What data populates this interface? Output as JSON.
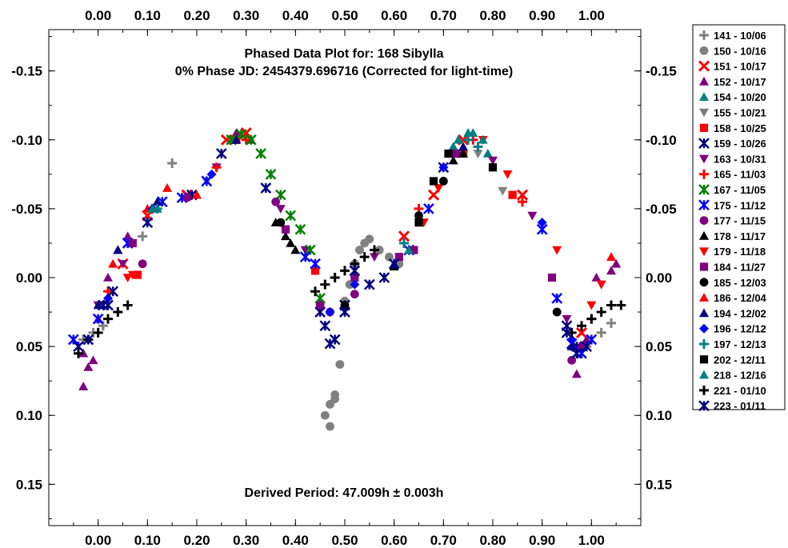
{
  "chart_data": {
    "type": "scatter",
    "title": "Phased Data Plot for: 168 Sibylla",
    "subtitle": "0% Phase JD:  2454379.696716   (Corrected for light-time)",
    "annotation": "Derived Period: 47.009h ± 0.003h",
    "xlim": [
      -0.1,
      1.1
    ],
    "ylim": [
      -0.18,
      0.18
    ],
    "y_inverted": true,
    "x_ticks": [
      "0.00",
      "0.10",
      "0.20",
      "0.30",
      "0.40",
      "0.50",
      "0.60",
      "0.70",
      "0.80",
      "0.90",
      "1.00"
    ],
    "y_ticks": [
      "-0.15",
      "-0.10",
      "-0.05",
      "0.00",
      "0.05",
      "0.10",
      "0.15"
    ],
    "legend_position": "right-outside",
    "grid": false,
    "series": [
      {
        "name": "141 - 10/06",
        "color": "#808080",
        "marker": "plus",
        "points": [
          [
            -0.03,
            0.045
          ],
          [
            -0.01,
            0.04
          ],
          [
            0.01,
            0.035
          ],
          [
            0.09,
            -0.03
          ],
          [
            0.15,
            -0.083
          ],
          [
            0.99,
            0.05
          ],
          [
            1.02,
            0.04
          ],
          [
            1.04,
            0.033
          ]
        ]
      },
      {
        "name": "150 - 10/16",
        "color": "#808080",
        "marker": "circle",
        "points": [
          [
            0.46,
            0.1
          ],
          [
            0.47,
            0.092
          ],
          [
            0.48,
            0.085
          ],
          [
            0.49,
            0.063
          ],
          [
            0.5,
            0.017
          ],
          [
            0.51,
            0.005
          ],
          [
            0.52,
            -0.01
          ],
          [
            0.53,
            -0.02
          ],
          [
            0.54,
            -0.025
          ],
          [
            0.55,
            -0.028
          ],
          [
            0.57,
            -0.02
          ],
          [
            0.59,
            -0.015
          ],
          [
            0.61,
            -0.01
          ],
          [
            0.48,
            0.088
          ],
          [
            0.47,
            0.108
          ]
        ]
      },
      {
        "name": "151 - 10/17",
        "color": "#ff0000",
        "marker": "x",
        "points": [
          [
            0.05,
            -0.01
          ],
          [
            0.1,
            -0.045
          ],
          [
            0.18,
            -0.06
          ],
          [
            0.26,
            -0.1
          ],
          [
            0.3,
            -0.105
          ],
          [
            0.62,
            -0.03
          ],
          [
            0.68,
            -0.06
          ],
          [
            0.74,
            -0.1
          ],
          [
            0.86,
            -0.06
          ],
          [
            0.98,
            0.04
          ]
        ]
      },
      {
        "name": "152 - 10/17",
        "color": "#800080",
        "marker": "triangle",
        "points": [
          [
            -0.03,
            0.055
          ],
          [
            -0.02,
            0.065
          ],
          [
            -0.01,
            0.06
          ],
          [
            0.0,
            0.03
          ],
          [
            0.02,
            0.0
          ],
          [
            0.04,
            -0.02
          ],
          [
            0.06,
            -0.03
          ],
          [
            0.28,
            -0.105
          ],
          [
            0.31,
            -0.1
          ],
          [
            0.72,
            -0.095
          ],
          [
            0.97,
            0.07
          ],
          [
            0.99,
            0.045
          ],
          [
            1.01,
            0.0
          ],
          [
            1.04,
            -0.005
          ],
          [
            1.05,
            -0.01
          ],
          [
            -0.03,
            0.079
          ]
        ]
      },
      {
        "name": "154 - 10/20",
        "color": "#008080",
        "marker": "triangle",
        "points": [
          [
            0.12,
            -0.05
          ],
          [
            0.27,
            -0.1
          ],
          [
            0.63,
            -0.02
          ],
          [
            0.72,
            -0.095
          ],
          [
            0.75,
            -0.105
          ],
          [
            0.79,
            -0.09
          ]
        ]
      },
      {
        "name": "155 - 10/21",
        "color": "#808080",
        "marker": "triangle-down",
        "points": [
          [
            0.22,
            -0.07
          ],
          [
            0.66,
            -0.04
          ],
          [
            0.77,
            -0.09
          ],
          [
            0.82,
            -0.063
          ]
        ]
      },
      {
        "name": "158 - 10/25",
        "color": "#ff0000",
        "marker": "square",
        "points": [
          [
            0.08,
            -0.002
          ],
          [
            0.28,
            -0.1
          ],
          [
            0.44,
            -0.005
          ],
          [
            0.74,
            -0.09
          ],
          [
            0.84,
            -0.06
          ]
        ]
      },
      {
        "name": "159 - 10/26",
        "color": "#000080",
        "marker": "asterisk",
        "points": [
          [
            -0.04,
            0.05
          ],
          [
            0.02,
            0.02
          ],
          [
            0.1,
            -0.04
          ],
          [
            0.19,
            -0.06
          ],
          [
            0.25,
            -0.09
          ],
          [
            0.34,
            -0.065
          ],
          [
            0.45,
            0.025
          ],
          [
            0.47,
            0.048
          ],
          [
            0.5,
            0.02
          ],
          [
            0.7,
            -0.08
          ],
          [
            0.95,
            0.035
          ],
          [
            0.97,
            0.05
          ]
        ]
      },
      {
        "name": "163 - 10/31",
        "color": "#800080",
        "marker": "triangle-down",
        "points": [
          [
            0.0,
            0.02
          ],
          [
            0.05,
            -0.01
          ],
          [
            0.24,
            -0.08
          ],
          [
            0.37,
            -0.05
          ],
          [
            0.42,
            -0.02
          ],
          [
            0.56,
            -0.015
          ],
          [
            0.72,
            -0.09
          ],
          [
            0.8,
            -0.085
          ],
          [
            0.88,
            -0.045
          ],
          [
            0.95,
            0.03
          ]
        ]
      },
      {
        "name": "165 - 11/03",
        "color": "#ff0000",
        "marker": "plus",
        "points": [
          [
            0.02,
            0.01
          ],
          [
            0.11,
            -0.05
          ],
          [
            0.24,
            -0.08
          ],
          [
            0.3,
            -0.1
          ],
          [
            0.65,
            -0.05
          ],
          [
            0.76,
            -0.1
          ],
          [
            0.86,
            -0.055
          ],
          [
            1.0,
            0.03
          ]
        ]
      },
      {
        "name": "167 - 11/05",
        "color": "#008000",
        "marker": "asterisk",
        "points": [
          [
            0.27,
            -0.1
          ],
          [
            0.29,
            -0.104
          ],
          [
            0.31,
            -0.1
          ],
          [
            0.33,
            -0.09
          ],
          [
            0.35,
            -0.075
          ],
          [
            0.37,
            -0.06
          ],
          [
            0.39,
            -0.045
          ],
          [
            0.41,
            -0.035
          ],
          [
            0.43,
            -0.02
          ],
          [
            0.45,
            0.015
          ]
        ]
      },
      {
        "name": "175 - 11/12",
        "color": "#0000ff",
        "marker": "asterisk",
        "points": [
          [
            -0.05,
            0.045
          ],
          [
            0.0,
            0.03
          ],
          [
            0.06,
            -0.025
          ],
          [
            0.13,
            -0.055
          ],
          [
            0.17,
            -0.058
          ],
          [
            0.22,
            -0.07
          ],
          [
            0.42,
            -0.015
          ],
          [
            0.44,
            -0.01
          ],
          [
            0.63,
            -0.02
          ],
          [
            0.67,
            -0.05
          ],
          [
            0.9,
            -0.035
          ],
          [
            0.93,
            0.015
          ],
          [
            0.96,
            0.048
          ],
          [
            0.98,
            0.055
          ],
          [
            1.0,
            0.045
          ]
        ]
      },
      {
        "name": "177 - 11/15",
        "color": "#800080",
        "marker": "circle",
        "points": [
          [
            0.09,
            -0.01
          ],
          [
            0.18,
            -0.058
          ],
          [
            0.36,
            -0.055
          ],
          [
            0.45,
            0.02
          ],
          [
            0.47,
            0.025
          ],
          [
            0.52,
            0.012
          ],
          [
            0.73,
            -0.09
          ],
          [
            0.96,
            0.06
          ],
          [
            0.98,
            0.05
          ]
        ]
      },
      {
        "name": "178 - 11/17",
        "color": "#000000",
        "marker": "triangle",
        "points": [
          [
            0.36,
            -0.04
          ],
          [
            0.38,
            -0.03
          ],
          [
            0.39,
            -0.025
          ],
          [
            0.4,
            -0.02
          ],
          [
            0.6,
            -0.008
          ],
          [
            0.72,
            -0.085
          ],
          [
            0.74,
            -0.09
          ]
        ]
      },
      {
        "name": "179 - 11/18",
        "color": "#ff0000",
        "marker": "triangle-down",
        "points": [
          [
            0.06,
            0.0
          ],
          [
            0.07,
            -0.002
          ],
          [
            0.66,
            -0.04
          ],
          [
            0.69,
            -0.065
          ],
          [
            0.78,
            -0.1
          ],
          [
            0.83,
            -0.075
          ],
          [
            0.93,
            -0.02
          ],
          [
            1.0,
            0.02
          ],
          [
            1.02,
            0.005
          ]
        ]
      },
      {
        "name": "184 - 11/27",
        "color": "#800080",
        "marker": "square",
        "points": [
          [
            0.07,
            -0.025
          ],
          [
            0.38,
            -0.035
          ],
          [
            0.52,
            0.0
          ],
          [
            0.61,
            -0.015
          ],
          [
            0.64,
            -0.02
          ],
          [
            0.72,
            -0.09
          ],
          [
            0.92,
            0.0
          ]
        ]
      },
      {
        "name": "185 - 12/03",
        "color": "#000000",
        "marker": "circle",
        "points": [
          [
            0.37,
            -0.04
          ],
          [
            0.5,
            0.02
          ],
          [
            0.65,
            -0.045
          ],
          [
            0.7,
            -0.07
          ],
          [
            0.93,
            0.025
          ]
        ]
      },
      {
        "name": "186 - 12/04",
        "color": "#ff0000",
        "marker": "triangle",
        "points": [
          [
            0.03,
            -0.01
          ],
          [
            0.1,
            -0.05
          ],
          [
            0.14,
            -0.065
          ],
          [
            0.2,
            -0.06
          ],
          [
            1.04,
            -0.015
          ]
        ]
      },
      {
        "name": "194 - 12/02",
        "color": "#000080",
        "marker": "triangle",
        "points": [
          [
            0.0,
            0.02
          ],
          [
            0.04,
            -0.02
          ],
          [
            0.12,
            -0.055
          ],
          [
            0.28,
            -0.1
          ],
          [
            0.6,
            -0.01
          ],
          [
            0.74,
            -0.095
          ],
          [
            0.96,
            0.05
          ]
        ]
      },
      {
        "name": "196 - 12/12",
        "color": "#0000ff",
        "marker": "diamond",
        "points": [
          [
            0.02,
            0.015
          ],
          [
            0.11,
            -0.05
          ],
          [
            0.23,
            -0.075
          ],
          [
            0.47,
            0.025
          ],
          [
            0.52,
            0.005
          ],
          [
            0.7,
            -0.08
          ],
          [
            0.9,
            -0.04
          ],
          [
            0.96,
            0.045
          ]
        ]
      },
      {
        "name": "197 - 12/13",
        "color": "#008080",
        "marker": "plus",
        "points": [
          [
            0.12,
            -0.05
          ],
          [
            0.75,
            -0.1
          ],
          [
            0.77,
            -0.095
          ],
          [
            0.62,
            -0.025
          ]
        ]
      },
      {
        "name": "202 - 12/11",
        "color": "#000000",
        "marker": "square",
        "points": [
          [
            0.65,
            -0.04
          ],
          [
            0.68,
            -0.07
          ],
          [
            0.71,
            -0.09
          ],
          [
            0.8,
            -0.08
          ]
        ]
      },
      {
        "name": "218 - 12/16",
        "color": "#008080",
        "marker": "triangle",
        "points": [
          [
            0.11,
            -0.05
          ],
          [
            0.63,
            -0.02
          ],
          [
            0.73,
            -0.1
          ],
          [
            0.76,
            -0.105
          ],
          [
            0.78,
            -0.1
          ]
        ]
      },
      {
        "name": "221 - 01/10",
        "color": "#000000",
        "marker": "plus",
        "points": [
          [
            -0.04,
            0.055
          ],
          [
            -0.02,
            0.045
          ],
          [
            0.0,
            0.04
          ],
          [
            0.02,
            0.03
          ],
          [
            0.04,
            0.025
          ],
          [
            0.06,
            0.02
          ],
          [
            0.44,
            0.01
          ],
          [
            0.46,
            0.005
          ],
          [
            0.48,
            0.0
          ],
          [
            0.5,
            -0.005
          ],
          [
            0.52,
            -0.01
          ],
          [
            0.54,
            -0.015
          ],
          [
            0.56,
            -0.02
          ],
          [
            0.96,
            0.04
          ],
          [
            0.98,
            0.035
          ],
          [
            1.0,
            0.03
          ],
          [
            1.02,
            0.025
          ],
          [
            1.04,
            0.02
          ],
          [
            1.06,
            0.02
          ]
        ]
      },
      {
        "name": "223 - 01/11",
        "color": "#000080",
        "marker": "asterisk",
        "points": [
          [
            -0.02,
            0.045
          ],
          [
            0.01,
            0.02
          ],
          [
            0.03,
            0.01
          ],
          [
            0.46,
            0.035
          ],
          [
            0.48,
            0.045
          ],
          [
            0.5,
            0.025
          ],
          [
            0.52,
            -0.005
          ],
          [
            0.55,
            0.005
          ],
          [
            0.58,
            0.0
          ],
          [
            0.6,
            -0.01
          ],
          [
            0.95,
            0.04
          ],
          [
            0.97,
            0.055
          ],
          [
            0.99,
            0.05
          ]
        ]
      }
    ]
  }
}
